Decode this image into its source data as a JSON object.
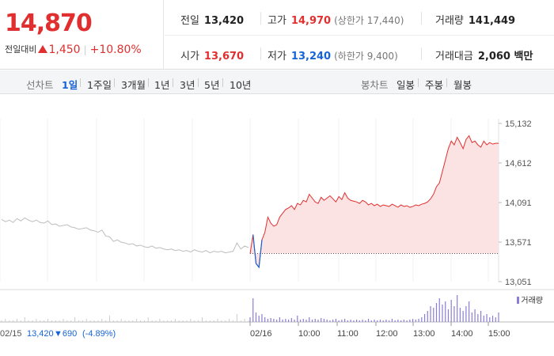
{
  "header": {
    "price": "14,870",
    "change_label": "전일대비",
    "change_value": "1,450",
    "change_sep": "|",
    "change_pct": "+10.80%",
    "prev_close": {
      "label": "전일",
      "value": "13,420"
    },
    "high": {
      "label": "고가",
      "value": "14,970",
      "sub": "(상한가 17,440)"
    },
    "volume": {
      "label": "거래량",
      "value": "141,449"
    },
    "open": {
      "label": "시가",
      "value": "13,670"
    },
    "low": {
      "label": "저가",
      "value": "13,240",
      "sub": "(하한가 9,400)"
    },
    "amount": {
      "label": "거래대금",
      "value": "2,060 백만"
    }
  },
  "toolbar": {
    "line_label": "선차트",
    "line_periods": [
      "1일",
      "1주일",
      "3개월",
      "1년",
      "3년",
      "5년",
      "10년"
    ],
    "line_active": "1일",
    "candle_label": "봉차트",
    "candle_periods": [
      "일봉",
      "주봉",
      "월봉"
    ]
  },
  "chart_footer": {
    "prev_date": "02/15",
    "prev_close": "13,420",
    "prev_change": "▼690",
    "prev_pct": "(-4.89%)",
    "volume_legend": "거래량"
  },
  "colors": {
    "up": "#e12f2f",
    "down": "#1763d6",
    "prev": "#bdbdbd",
    "volume": "#8a7dd8"
  },
  "chart_data": {
    "type": "line",
    "y_ticks": [
      "15,132",
      "14,612",
      "14,091",
      "13,571",
      "13,051"
    ],
    "x_ticks": [
      "02/16",
      "10:00",
      "11:00",
      "12:00",
      "13:00",
      "14:00",
      "15:00"
    ],
    "ylim": [
      13051,
      15132
    ],
    "baseline": 13420,
    "prev_day_series": [
      13870,
      13840,
      13860,
      13830,
      13880,
      13850,
      13890,
      13860,
      13840,
      13860,
      13830,
      13820,
      13850,
      13800,
      13810,
      13780,
      13790,
      13800,
      13770,
      13760,
      13740,
      13750,
      13760,
      13730,
      13720,
      13700,
      13730,
      13650,
      13640,
      13580,
      13600,
      13570,
      13560,
      13540,
      13550,
      13520,
      13530,
      13510,
      13500,
      13520,
      13490,
      13500,
      13480,
      13470,
      13480,
      13460,
      13470,
      13450,
      13460,
      13440,
      13470,
      13450,
      13440,
      13460,
      13430,
      13450,
      13440,
      13450,
      13430,
      13440,
      13450,
      13560,
      13480,
      13520,
      13500
    ],
    "today_series": [
      13420,
      13670,
      13290,
      13240,
      13600,
      13700,
      13900,
      13820,
      13780,
      13800,
      13900,
      13950,
      14000,
      14020,
      14050,
      14000,
      14080,
      14060,
      14120,
      14100,
      14200,
      14150,
      14100,
      14080,
      14160,
      14120,
      14150,
      14180,
      14140,
      14100,
      14170,
      14130,
      14220,
      14150,
      14120,
      14110,
      14100,
      14080,
      14120,
      14100,
      14060,
      14080,
      14050,
      14070,
      14040,
      14060,
      14050,
      14040,
      14070,
      14050,
      14030,
      14060,
      14040,
      14050,
      14030,
      14040,
      14060,
      14050,
      14070,
      14080,
      14100,
      14140,
      14200,
      14300,
      14350,
      14500,
      14650,
      14800,
      14900,
      14850,
      14950,
      14880,
      14800,
      14920,
      14970,
      14880,
      14900,
      14850,
      14820,
      14900,
      14850,
      14880,
      14860,
      14870,
      14870
    ]
  }
}
